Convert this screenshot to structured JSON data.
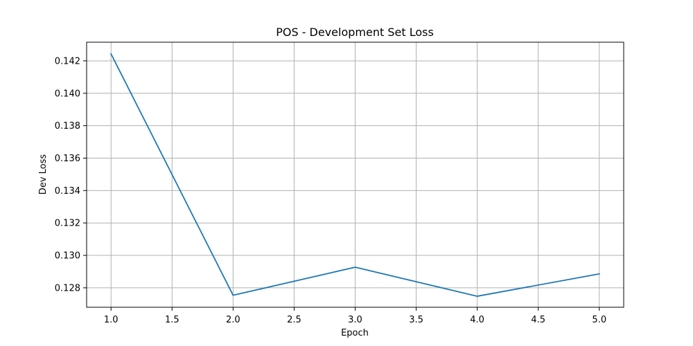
{
  "chart_data": {
    "type": "line",
    "title": "POS - Development Set Loss",
    "xlabel": "Epoch",
    "ylabel": "Dev Loss",
    "x": [
      1.0,
      2.0,
      3.0,
      4.0,
      5.0
    ],
    "series": [
      {
        "values": [
          0.14243,
          0.12754,
          0.12927,
          0.12748,
          0.12886
        ],
        "color": "#1f77b4"
      }
    ],
    "xlim": [
      0.8,
      5.2
    ],
    "ylim": [
      0.1268,
      0.14315
    ],
    "xticks": [
      1.0,
      1.5,
      2.0,
      2.5,
      3.0,
      3.5,
      4.0,
      4.5,
      5.0
    ],
    "xtick_labels": [
      "1.0",
      "1.5",
      "2.0",
      "2.5",
      "3.0",
      "3.5",
      "4.0",
      "4.5",
      "5.0"
    ],
    "yticks": [
      0.128,
      0.13,
      0.132,
      0.134,
      0.136,
      0.138,
      0.14,
      0.142
    ],
    "ytick_labels": [
      "0.128",
      "0.130",
      "0.132",
      "0.134",
      "0.136",
      "0.138",
      "0.140",
      "0.142"
    ],
    "grid": true,
    "grid_color": "#b0b0b0",
    "axes_color": "#000000"
  }
}
